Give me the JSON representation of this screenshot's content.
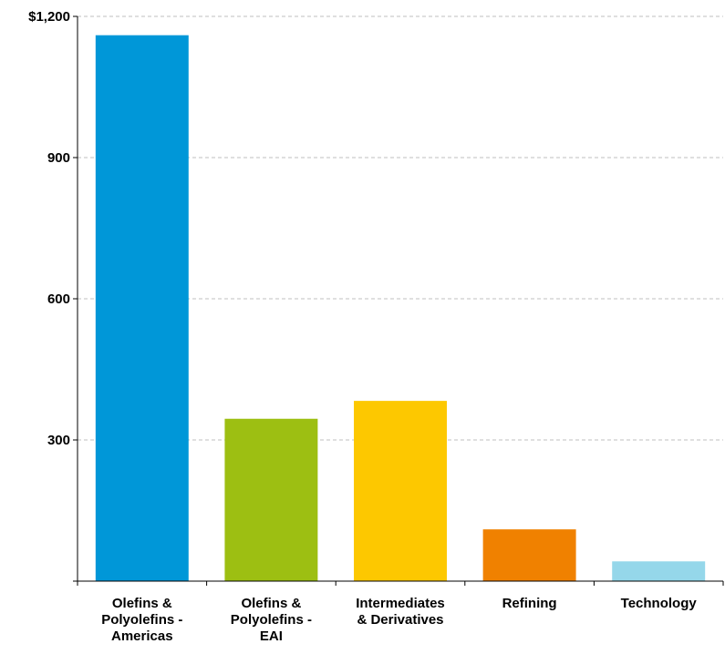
{
  "chart_data": {
    "type": "bar",
    "categories": [
      [
        "Olefins &",
        "Polyolefins -",
        "Americas"
      ],
      [
        "Olefins &",
        "Polyolefins -",
        "EAI"
      ],
      [
        "Intermediates",
        "& Derivatives"
      ],
      [
        "Refining"
      ],
      [
        "Technology"
      ]
    ],
    "values": [
      1160,
      345,
      383,
      110,
      42
    ],
    "colors": [
      "#0097d8",
      "#9dbf12",
      "#fdc800",
      "#f08100",
      "#95d7ea"
    ],
    "ylim": [
      0,
      1200
    ],
    "yticks": [
      0,
      300,
      600,
      900,
      1200
    ],
    "ytick_labels": [
      "",
      "300",
      "600",
      "900",
      "$1,200"
    ],
    "grid": true,
    "legend": "none"
  }
}
